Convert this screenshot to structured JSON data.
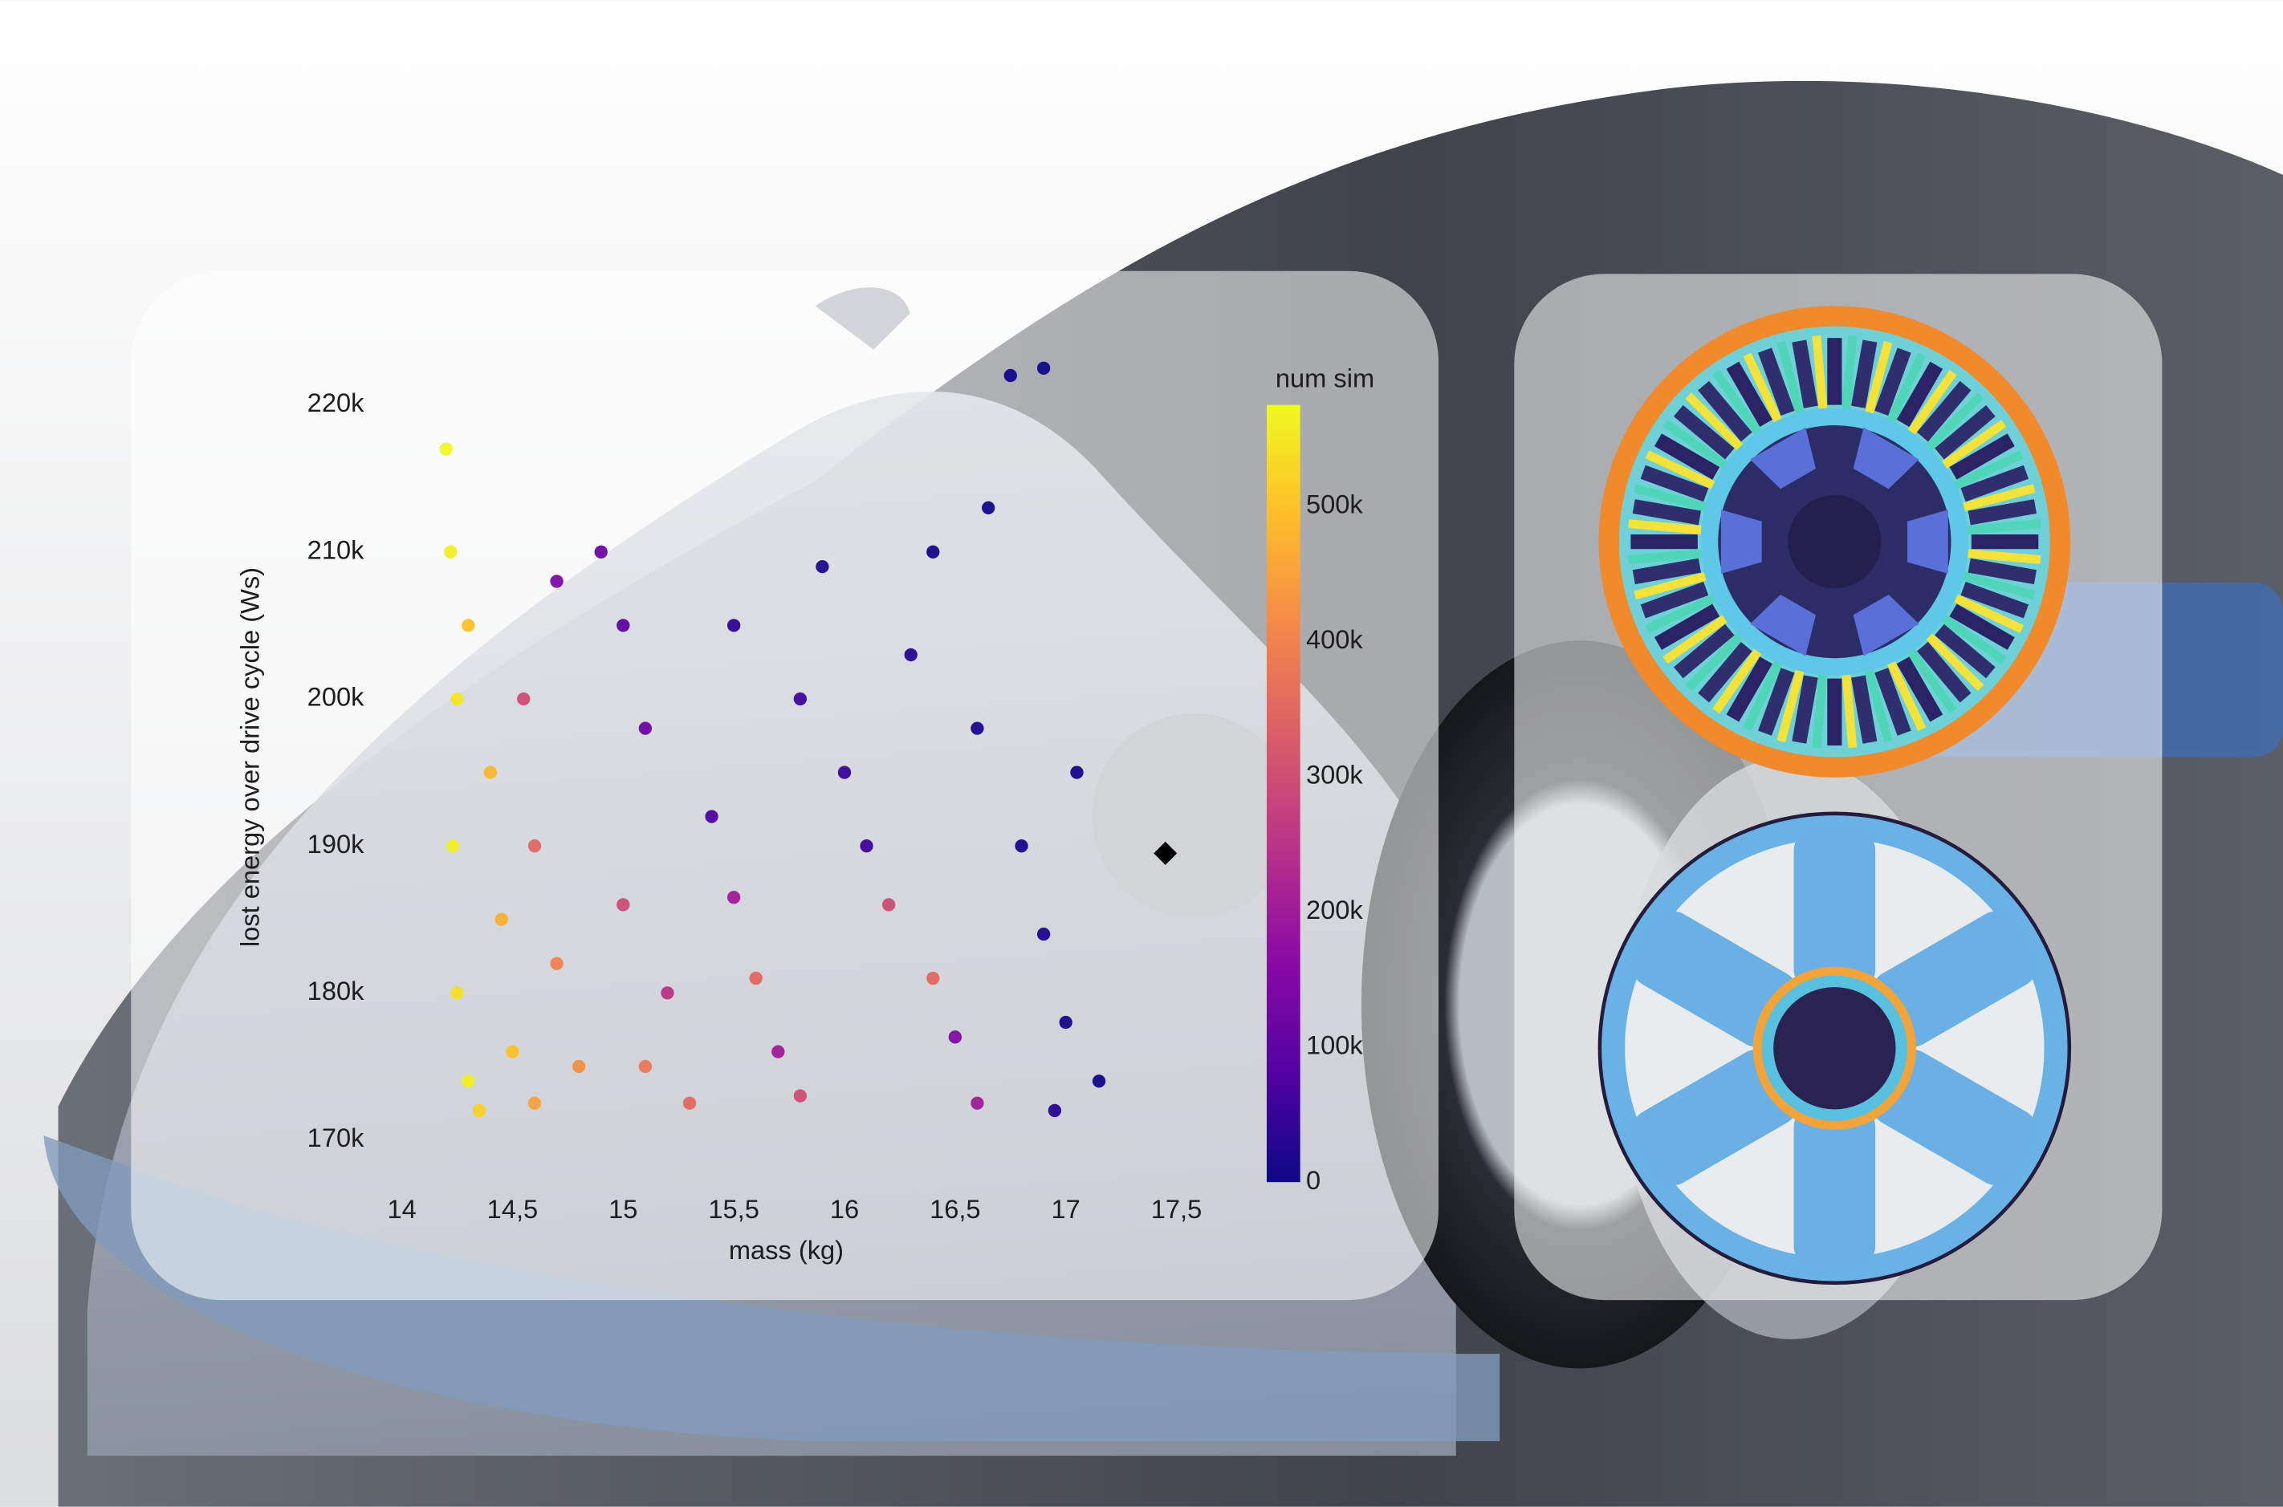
{
  "chart_data": {
    "type": "scatter",
    "x_label": "mass (kg)",
    "y_label": "lost energy over drive cycle (Ws)",
    "colorbar_label": "num sim",
    "colormap": "plasma",
    "xlim": [
      14,
      17.5
    ],
    "ylim": [
      170000,
      223000
    ],
    "clim": [
      0,
      575000
    ],
    "xticks": [
      14,
      {
        "value": 14.5,
        "label": "14,5"
      },
      15,
      {
        "value": 15.5,
        "label": "15,5"
      },
      16,
      {
        "value": 16.5,
        "label": "16,5"
      },
      17,
      {
        "value": 17.5,
        "label": "17,5"
      }
    ],
    "yticks": [
      {
        "value": 170000,
        "label": "170k"
      },
      {
        "value": 180000,
        "label": "180k"
      },
      {
        "value": 190000,
        "label": "190k"
      },
      {
        "value": 200000,
        "label": "200k"
      },
      {
        "value": 210000,
        "label": "210k"
      },
      {
        "value": 220000,
        "label": "220k"
      }
    ],
    "cticks": [
      0,
      {
        "value": 100000,
        "label": "100k"
      },
      {
        "value": 200000,
        "label": "200k"
      },
      {
        "value": 300000,
        "label": "300k"
      },
      {
        "value": 400000,
        "label": "400k"
      },
      {
        "value": 500000,
        "label": "500k"
      }
    ],
    "series": [
      {
        "x": [
          14.2,
          14.22,
          14.25,
          14.23,
          14.25,
          14.3,
          14.35,
          14.3,
          14.4,
          14.45,
          14.5,
          14.6,
          14.55,
          14.6,
          14.7,
          14.8,
          14.7,
          14.9,
          15.0,
          15.1,
          15.0,
          15.2,
          15.1,
          15.3,
          15.4,
          15.5,
          15.6,
          15.7,
          15.8,
          15.5,
          15.8,
          16.0,
          16.1,
          16.2,
          16.4,
          16.5,
          16.6,
          16.3,
          16.6,
          16.8,
          16.9,
          17.0,
          17.15,
          16.95,
          16.75,
          16.9,
          16.65,
          16.4,
          15.9,
          17.05
        ],
        "y": [
          217000,
          210000,
          200000,
          190000,
          180000,
          174000,
          172000,
          205000,
          195000,
          185000,
          176000,
          172500,
          200000,
          190000,
          182000,
          175000,
          208000,
          210000,
          205000,
          198000,
          186000,
          180000,
          175000,
          172500,
          192000,
          186500,
          181000,
          176000,
          173000,
          205000,
          200000,
          195000,
          190000,
          186000,
          181000,
          177000,
          172500,
          203000,
          198000,
          190000,
          184000,
          178000,
          174000,
          172000,
          222000,
          222500,
          213000,
          210000,
          209000,
          195000
        ],
        "c": [
          575000,
          560000,
          550000,
          560000,
          540000,
          560000,
          520000,
          500000,
          480000,
          470000,
          500000,
          450000,
          300000,
          350000,
          400000,
          420000,
          150000,
          120000,
          100000,
          120000,
          300000,
          250000,
          380000,
          350000,
          80000,
          200000,
          350000,
          200000,
          300000,
          40000,
          60000,
          50000,
          60000,
          300000,
          350000,
          150000,
          200000,
          30000,
          20000,
          15000,
          20000,
          10000,
          5000,
          30000,
          5000,
          5000,
          5000,
          10000,
          20000,
          10000
        ]
      }
    ],
    "highlight": {
      "x": 17.45,
      "y": 189500
    }
  }
}
